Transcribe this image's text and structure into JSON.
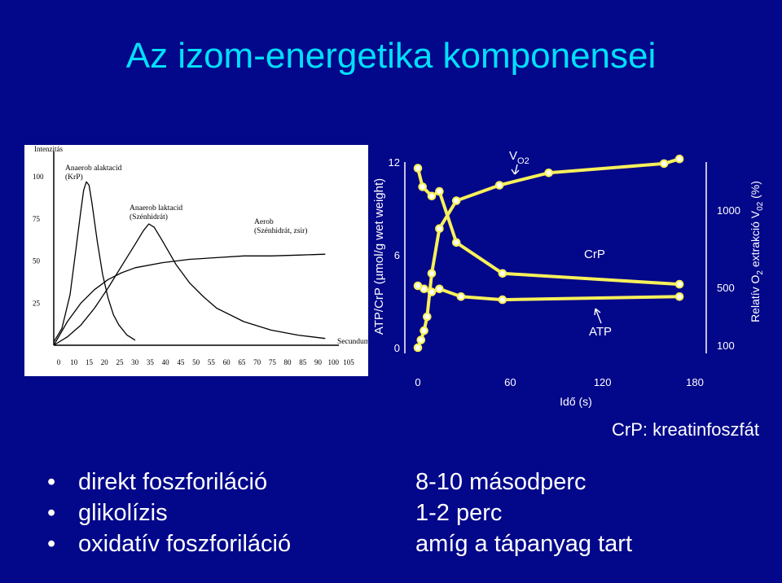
{
  "title": "Az izom-energetika komponensei",
  "chart_data": [
    {
      "type": "line",
      "ylabel": "Intenzitás",
      "xlabel": "Secundum",
      "x_ticks": [
        0,
        10,
        15,
        20,
        25,
        30,
        35,
        40,
        45,
        50,
        55,
        60,
        65,
        70,
        75,
        80,
        85,
        90,
        100,
        105
      ],
      "y_ticks": [
        25,
        50,
        75,
        100
      ],
      "xlim": [
        0,
        105
      ],
      "ylim": [
        0,
        115
      ],
      "grid": false,
      "series": [
        {
          "name": "Anaerob alaktacid (KrP)",
          "x": [
            0,
            3,
            6,
            8,
            10,
            11,
            12,
            13,
            14,
            16,
            18,
            20,
            22,
            24,
            27,
            30
          ],
          "y": [
            2,
            10,
            30,
            55,
            80,
            92,
            97,
            95,
            85,
            62,
            42,
            28,
            18,
            12,
            6,
            3
          ]
        },
        {
          "name": "Anaerob laktacid (Szénhidrát)",
          "x": [
            0,
            5,
            10,
            15,
            20,
            25,
            30,
            33,
            35,
            37,
            40,
            45,
            50,
            55,
            60,
            70,
            80,
            90,
            100
          ],
          "y": [
            0,
            5,
            12,
            22,
            34,
            47,
            60,
            68,
            72,
            70,
            62,
            48,
            37,
            29,
            22,
            14,
            9,
            6,
            4
          ]
        },
        {
          "name": "Aerob (Szénhidrát, zsír)",
          "x": [
            0,
            5,
            10,
            15,
            20,
            25,
            30,
            40,
            50,
            60,
            70,
            80,
            90,
            100
          ],
          "y": [
            0,
            14,
            25,
            33,
            39,
            43,
            46,
            49,
            51,
            52,
            53,
            53,
            53.5,
            54
          ]
        }
      ]
    },
    {
      "type": "line",
      "xlabel": "Idő (s)",
      "ylabel": "ATP/CrP (µmol/g wet weight)",
      "y2label": "Relatív O2 extrakció V02 (%)",
      "x_ticks": [
        0,
        60,
        120,
        180
      ],
      "y_ticks": [
        0,
        6,
        12
      ],
      "y2_ticks": [
        100,
        500,
        1000
      ],
      "xlim": [
        0,
        180
      ],
      "ylim": [
        0,
        12
      ],
      "grid": false,
      "color": "#f7f05a",
      "series": [
        {
          "name": "V O2",
          "x": [
            0,
            2,
            4,
            6,
            9,
            14,
            25,
            53,
            85,
            160,
            170
          ],
          "y": [
            0,
            0.5,
            1.1,
            2.0,
            4.8,
            7.7,
            9.5,
            10.5,
            11.3,
            11.9,
            12.2
          ]
        },
        {
          "name": "CrP",
          "x": [
            0,
            3,
            9,
            14,
            25,
            55,
            170
          ],
          "y": [
            11.6,
            10.4,
            9.8,
            10.1,
            6.8,
            4.8,
            4.1
          ]
        },
        {
          "name": "ATP",
          "x": [
            0,
            4,
            9,
            14,
            28,
            55,
            170
          ],
          "y": [
            4.0,
            3.8,
            3.6,
            3.8,
            3.3,
            3.1,
            3.3
          ]
        }
      ]
    }
  ],
  "left_chart": {
    "ylabel": "Intenzitás",
    "xlabel": "Secundum",
    "label_alaktacid": "Anaerob alaktacid",
    "label_alaktacid_sub": "(KrP)",
    "label_laktacid": "Anaerob laktacid",
    "label_laktacid_sub": "(Szénhidrát)",
    "label_aerob": "Aerob",
    "label_aerob_sub": "(Szénhidrát, zsir)"
  },
  "right_chart": {
    "ylabel": "ATP/CrP (µmol/g wet weight)",
    "y2label_main": "Relatív O",
    "y2label_sub1": "2",
    "y2label_mid": " extrakció V",
    "y2label_sub2": "02",
    "y2label_end": " (%)",
    "xlabel": "Idő (s)",
    "vo2_main": "V",
    "vo2_sub": "O2",
    "crp_label": "CrP",
    "atp_label": "ATP"
  },
  "crp_note": "CrP: kreatinfoszfát",
  "bullets": [
    "direkt foszforiláció",
    "glikolízis",
    "oxidatív foszforiláció"
  ],
  "durations": [
    "8-10 másodperc",
    "1-2 perc",
    "amíg a tápanyag tart"
  ],
  "colors": {
    "background": "#03078a",
    "title": "#00e0ff",
    "curve": "#f7f05a",
    "text": "#ffffff"
  }
}
